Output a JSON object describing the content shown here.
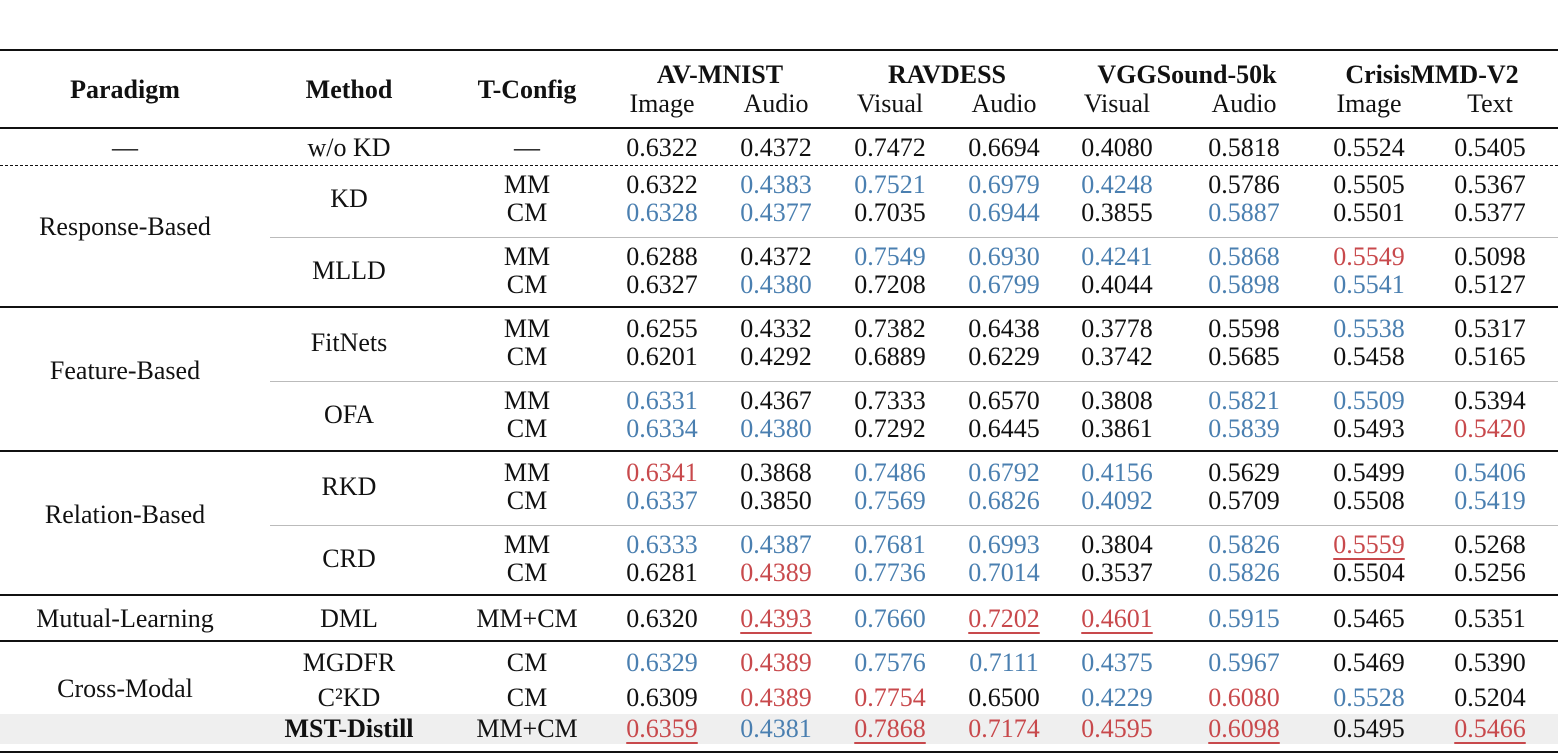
{
  "palette": {
    "k": "#111111",
    "b": "#4a7fb0",
    "r": "#c8494c"
  },
  "header": {
    "paradigm": "Paradigm",
    "method": "Method",
    "config": "T-Config",
    "datasets": [
      {
        "name": "AV-MNIST",
        "modalities": [
          "Image",
          "Audio"
        ]
      },
      {
        "name": "RAVDESS",
        "modalities": [
          "Visual",
          "Audio"
        ]
      },
      {
        "name": "VGGSound-50k",
        "modalities": [
          "Visual",
          "Audio"
        ]
      },
      {
        "name": "CrisisMMD-V2",
        "modalities": [
          "Image",
          "Text"
        ]
      }
    ]
  },
  "groups": [
    {
      "paradigm": "—",
      "methods": [
        {
          "name": "w/o KD",
          "rows": [
            {
              "config": "—",
              "values": [
                "0.6322",
                "0.4372",
                "0.7472",
                "0.6694",
                "0.4080",
                "0.5818",
                "0.5524",
                "0.5405"
              ],
              "colors": "kkkkkkkk",
              "underline": []
            }
          ]
        }
      ]
    },
    {
      "paradigm": "Response-Based",
      "methods": [
        {
          "name": "KD",
          "rows": [
            {
              "config": "MM",
              "values": [
                "0.6322",
                "0.4383",
                "0.7521",
                "0.6979",
                "0.4248",
                "0.5786",
                "0.5505",
                "0.5367"
              ],
              "colors": "kbbbbkkk",
              "underline": []
            },
            {
              "config": "CM",
              "values": [
                "0.6328",
                "0.4377",
                "0.7035",
                "0.6944",
                "0.3855",
                "0.5887",
                "0.5501",
                "0.5377"
              ],
              "colors": "bbkbkbkk",
              "underline": []
            }
          ]
        },
        {
          "name": "MLLD",
          "rows": [
            {
              "config": "MM",
              "values": [
                "0.6288",
                "0.4372",
                "0.7549",
                "0.6930",
                "0.4241",
                "0.5868",
                "0.5549",
                "0.5098"
              ],
              "colors": "kkbbbbrk",
              "underline": []
            },
            {
              "config": "CM",
              "values": [
                "0.6327",
                "0.4380",
                "0.7208",
                "0.6799",
                "0.4044",
                "0.5898",
                "0.5541",
                "0.5127"
              ],
              "colors": "kbkbkbbk",
              "underline": []
            }
          ]
        }
      ]
    },
    {
      "paradigm": "Feature-Based",
      "methods": [
        {
          "name": "FitNets",
          "rows": [
            {
              "config": "MM",
              "values": [
                "0.6255",
                "0.4332",
                "0.7382",
                "0.6438",
                "0.3778",
                "0.5598",
                "0.5538",
                "0.5317"
              ],
              "colors": "kkkkkkbk",
              "underline": []
            },
            {
              "config": "CM",
              "values": [
                "0.6201",
                "0.4292",
                "0.6889",
                "0.6229",
                "0.3742",
                "0.5685",
                "0.5458",
                "0.5165"
              ],
              "colors": "kkkkkkkk",
              "underline": []
            }
          ]
        },
        {
          "name": "OFA",
          "rows": [
            {
              "config": "MM",
              "values": [
                "0.6331",
                "0.4367",
                "0.7333",
                "0.6570",
                "0.3808",
                "0.5821",
                "0.5509",
                "0.5394"
              ],
              "colors": "bkkkkbbk",
              "underline": []
            },
            {
              "config": "CM",
              "values": [
                "0.6334",
                "0.4380",
                "0.7292",
                "0.6445",
                "0.3861",
                "0.5839",
                "0.5493",
                "0.5420"
              ],
              "colors": "bbkkkbkr",
              "underline": []
            }
          ]
        }
      ]
    },
    {
      "paradigm": "Relation-Based",
      "methods": [
        {
          "name": "RKD",
          "rows": [
            {
              "config": "MM",
              "values": [
                "0.6341",
                "0.3868",
                "0.7486",
                "0.6792",
                "0.4156",
                "0.5629",
                "0.5499",
                "0.5406"
              ],
              "colors": "rkbbbkkb",
              "underline": []
            },
            {
              "config": "CM",
              "values": [
                "0.6337",
                "0.3850",
                "0.7569",
                "0.6826",
                "0.4092",
                "0.5709",
                "0.5508",
                "0.5419"
              ],
              "colors": "bkbbbkkb",
              "underline": []
            }
          ]
        },
        {
          "name": "CRD",
          "rows": [
            {
              "config": "MM",
              "values": [
                "0.6333",
                "0.4387",
                "0.7681",
                "0.6993",
                "0.3804",
                "0.5826",
                "0.5559",
                "0.5268"
              ],
              "colors": "bbbbkbrk",
              "underline": [
                6
              ]
            },
            {
              "config": "CM",
              "values": [
                "0.6281",
                "0.4389",
                "0.7736",
                "0.7014",
                "0.3537",
                "0.5826",
                "0.5504",
                "0.5256"
              ],
              "colors": "krbbkbkk",
              "underline": []
            }
          ]
        }
      ]
    },
    {
      "paradigm": "Mutual-Learning",
      "methods": [
        {
          "name": "DML",
          "rows": [
            {
              "config": "MM+CM",
              "values": [
                "0.6320",
                "0.4393",
                "0.7660",
                "0.7202",
                "0.4601",
                "0.5915",
                "0.5465",
                "0.5351"
              ],
              "colors": "krbrrbkk",
              "underline": [
                1,
                3,
                4
              ]
            }
          ]
        }
      ]
    },
    {
      "paradigm": "Cross-Modal",
      "methods": [
        {
          "name": "MGDFR",
          "rows": [
            {
              "config": "CM",
              "values": [
                "0.6329",
                "0.4389",
                "0.7576",
                "0.7111",
                "0.4375",
                "0.5967",
                "0.5469",
                "0.5390"
              ],
              "colors": "brbbbbkk",
              "underline": []
            }
          ]
        },
        {
          "name": "C²KD",
          "rows": [
            {
              "config": "CM",
              "values": [
                "0.6309",
                "0.4389",
                "0.7754",
                "0.6500",
                "0.4229",
                "0.6080",
                "0.5528",
                "0.5204"
              ],
              "colors": "krrkbrbk",
              "underline": []
            }
          ]
        },
        {
          "name": "MST-Distill",
          "bold": true,
          "shaded": true,
          "rows": [
            {
              "config": "MM+CM",
              "values": [
                "0.6359",
                "0.4381",
                "0.7868",
                "0.7174",
                "0.4595",
                "0.6098",
                "0.5495",
                "0.5466"
              ],
              "colors": "rbrrrrkr",
              "underline": [
                0,
                2,
                5,
                7
              ]
            }
          ]
        }
      ]
    }
  ]
}
